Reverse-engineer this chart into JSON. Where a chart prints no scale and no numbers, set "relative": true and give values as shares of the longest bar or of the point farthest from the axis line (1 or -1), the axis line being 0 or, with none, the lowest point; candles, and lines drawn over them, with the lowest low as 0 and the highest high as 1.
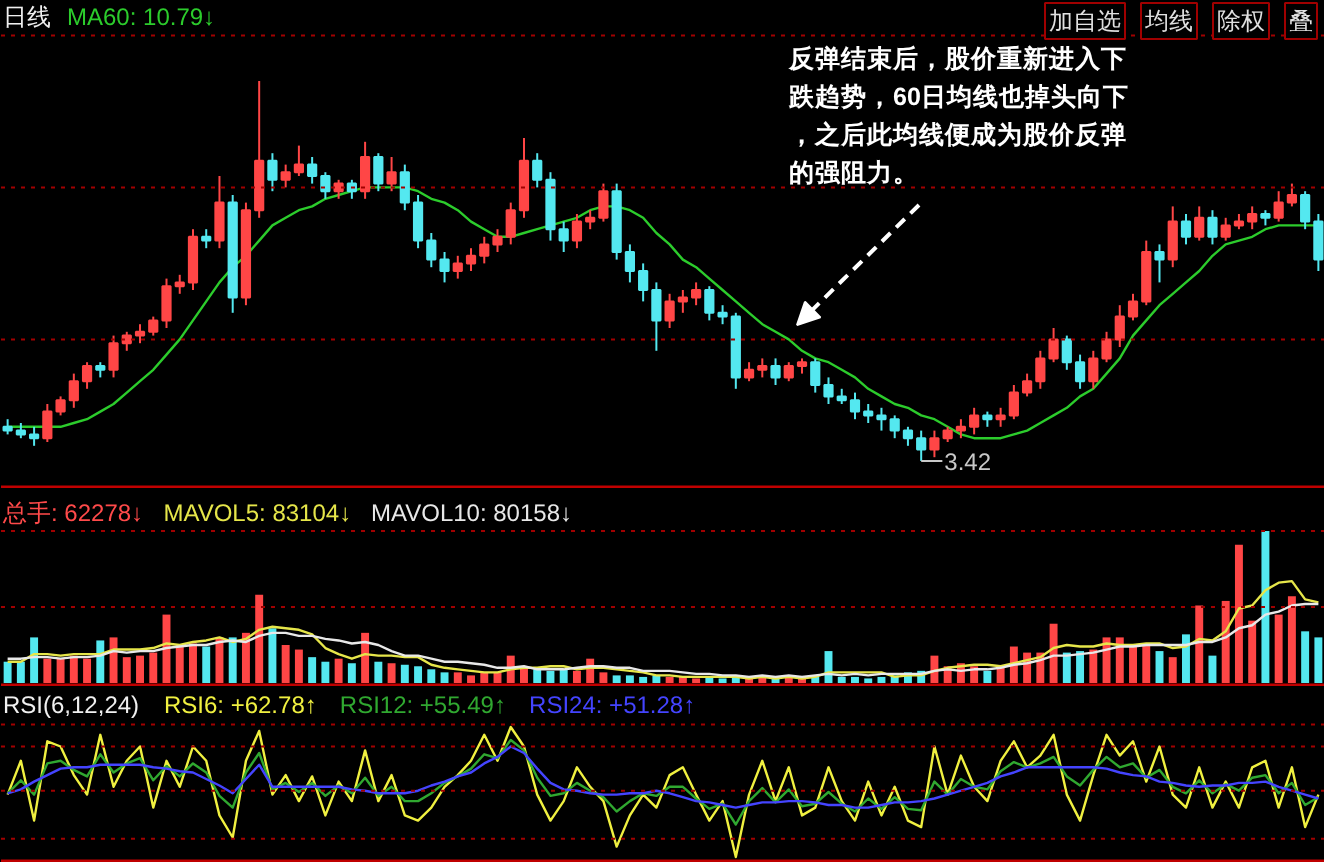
{
  "chart_data": [
    {
      "type": "candlestick",
      "title": "日线",
      "relative": true,
      "legend": "top left",
      "tick_labels": false,
      "categories": [
        null,
        null,
        null,
        null,
        null,
        null,
        null,
        null,
        null,
        null,
        null,
        null,
        null,
        null,
        null,
        null,
        null,
        null,
        null,
        null,
        null,
        null,
        null,
        null,
        null,
        null,
        null,
        null,
        null,
        null,
        null,
        null,
        null,
        null,
        null,
        null,
        null,
        null,
        null,
        null,
        null,
        null,
        null,
        null,
        null,
        null,
        null,
        null,
        null,
        null,
        null,
        null,
        null,
        null,
        null,
        null,
        null,
        null,
        null,
        null,
        null,
        null,
        null,
        null,
        null,
        null,
        null,
        null,
        null,
        null,
        null,
        null,
        null,
        null,
        null,
        null,
        null,
        null,
        null,
        null,
        null,
        null,
        null,
        null,
        null,
        null,
        null,
        null,
        null,
        null,
        null,
        null,
        null,
        null,
        null,
        null,
        null,
        null,
        null,
        null
      ],
      "ohlc": [
        [
          0.09,
          0.11,
          0.07,
          0.08
        ],
        [
          0.08,
          0.1,
          0.06,
          0.07
        ],
        [
          0.07,
          0.09,
          0.04,
          0.06
        ],
        [
          0.06,
          0.15,
          0.05,
          0.13
        ],
        [
          0.13,
          0.17,
          0.12,
          0.16
        ],
        [
          0.16,
          0.23,
          0.14,
          0.21
        ],
        [
          0.21,
          0.26,
          0.19,
          0.25
        ],
        [
          0.25,
          0.26,
          0.22,
          0.24
        ],
        [
          0.24,
          0.33,
          0.22,
          0.31
        ],
        [
          0.31,
          0.34,
          0.29,
          0.33
        ],
        [
          0.33,
          0.36,
          0.31,
          0.34
        ],
        [
          0.34,
          0.38,
          0.33,
          0.37
        ],
        [
          0.37,
          0.48,
          0.35,
          0.46
        ],
        [
          0.46,
          0.49,
          0.44,
          0.47
        ],
        [
          0.47,
          0.61,
          0.45,
          0.59
        ],
        [
          0.59,
          0.61,
          0.56,
          0.58
        ],
        [
          0.58,
          0.75,
          0.56,
          0.68
        ],
        [
          0.68,
          0.7,
          0.39,
          0.43
        ],
        [
          0.43,
          0.68,
          0.41,
          0.66
        ],
        [
          0.66,
          1.0,
          0.64,
          0.79
        ],
        [
          0.79,
          0.81,
          0.71,
          0.74
        ],
        [
          0.74,
          0.78,
          0.72,
          0.76
        ],
        [
          0.76,
          0.83,
          0.75,
          0.78
        ],
        [
          0.78,
          0.8,
          0.73,
          0.75
        ],
        [
          0.75,
          0.76,
          0.69,
          0.71
        ],
        [
          0.71,
          0.74,
          0.69,
          0.73
        ],
        [
          0.73,
          0.74,
          0.69,
          0.71
        ],
        [
          0.71,
          0.84,
          0.69,
          0.8
        ],
        [
          0.8,
          0.81,
          0.71,
          0.73
        ],
        [
          0.73,
          0.8,
          0.71,
          0.76
        ],
        [
          0.76,
          0.78,
          0.66,
          0.68
        ],
        [
          0.68,
          0.7,
          0.56,
          0.58
        ],
        [
          0.58,
          0.6,
          0.51,
          0.53
        ],
        [
          0.53,
          0.55,
          0.47,
          0.5
        ],
        [
          0.5,
          0.54,
          0.48,
          0.52
        ],
        [
          0.52,
          0.56,
          0.5,
          0.54
        ],
        [
          0.54,
          0.59,
          0.52,
          0.57
        ],
        [
          0.57,
          0.61,
          0.55,
          0.59
        ],
        [
          0.59,
          0.68,
          0.57,
          0.66
        ],
        [
          0.66,
          0.85,
          0.64,
          0.79
        ],
        [
          0.79,
          0.81,
          0.72,
          0.74
        ],
        [
          0.74,
          0.76,
          0.58,
          0.61
        ],
        [
          0.61,
          0.63,
          0.55,
          0.58
        ],
        [
          0.58,
          0.65,
          0.56,
          0.63
        ],
        [
          0.63,
          0.66,
          0.61,
          0.64
        ],
        [
          0.64,
          0.73,
          0.63,
          0.71
        ],
        [
          0.71,
          0.73,
          0.53,
          0.55
        ],
        [
          0.55,
          0.57,
          0.47,
          0.5
        ],
        [
          0.5,
          0.52,
          0.42,
          0.45
        ],
        [
          0.45,
          0.47,
          0.29,
          0.37
        ],
        [
          0.37,
          0.44,
          0.35,
          0.42
        ],
        [
          0.42,
          0.45,
          0.39,
          0.43
        ],
        [
          0.43,
          0.47,
          0.41,
          0.45
        ],
        [
          0.45,
          0.46,
          0.37,
          0.39
        ],
        [
          0.39,
          0.41,
          0.36,
          0.38
        ],
        [
          0.38,
          0.39,
          0.19,
          0.22
        ],
        [
          0.22,
          0.26,
          0.21,
          0.24
        ],
        [
          0.24,
          0.27,
          0.22,
          0.25
        ],
        [
          0.25,
          0.27,
          0.2,
          0.22
        ],
        [
          0.22,
          0.26,
          0.21,
          0.25
        ],
        [
          0.25,
          0.27,
          0.23,
          0.26
        ],
        [
          0.26,
          0.27,
          0.18,
          0.2
        ],
        [
          0.2,
          0.22,
          0.15,
          0.17
        ],
        [
          0.17,
          0.19,
          0.15,
          0.16
        ],
        [
          0.16,
          0.18,
          0.11,
          0.13
        ],
        [
          0.13,
          0.15,
          0.1,
          0.12
        ],
        [
          0.12,
          0.14,
          0.08,
          0.11
        ],
        [
          0.11,
          0.12,
          0.06,
          0.08
        ],
        [
          0.08,
          0.09,
          0.04,
          0.06
        ],
        [
          0.06,
          0.08,
          0.0,
          0.03
        ],
        [
          0.03,
          0.08,
          0.01,
          0.06
        ],
        [
          0.06,
          0.09,
          0.05,
          0.08
        ],
        [
          0.08,
          0.11,
          0.06,
          0.09
        ],
        [
          0.09,
          0.14,
          0.07,
          0.12
        ],
        [
          0.12,
          0.13,
          0.09,
          0.11
        ],
        [
          0.11,
          0.14,
          0.09,
          0.12
        ],
        [
          0.12,
          0.2,
          0.11,
          0.18
        ],
        [
          0.18,
          0.23,
          0.17,
          0.21
        ],
        [
          0.21,
          0.29,
          0.19,
          0.27
        ],
        [
          0.27,
          0.35,
          0.26,
          0.32
        ],
        [
          0.32,
          0.33,
          0.24,
          0.26
        ],
        [
          0.26,
          0.28,
          0.19,
          0.21
        ],
        [
          0.21,
          0.29,
          0.19,
          0.27
        ],
        [
          0.27,
          0.34,
          0.26,
          0.32
        ],
        [
          0.32,
          0.41,
          0.3,
          0.38
        ],
        [
          0.38,
          0.44,
          0.37,
          0.42
        ],
        [
          0.42,
          0.58,
          0.41,
          0.55
        ],
        [
          0.55,
          0.57,
          0.47,
          0.53
        ],
        [
          0.53,
          0.67,
          0.51,
          0.63
        ],
        [
          0.63,
          0.65,
          0.57,
          0.59
        ],
        [
          0.59,
          0.67,
          0.58,
          0.64
        ],
        [
          0.64,
          0.66,
          0.57,
          0.59
        ],
        [
          0.59,
          0.64,
          0.58,
          0.62
        ],
        [
          0.62,
          0.65,
          0.61,
          0.63
        ],
        [
          0.63,
          0.67,
          0.61,
          0.65
        ],
        [
          0.65,
          0.66,
          0.62,
          0.64
        ],
        [
          0.64,
          0.71,
          0.63,
          0.68
        ],
        [
          0.68,
          0.73,
          0.67,
          0.7
        ],
        [
          0.7,
          0.71,
          0.61,
          0.63
        ],
        [
          0.63,
          0.65,
          0.5,
          0.53
        ]
      ],
      "colors": [
        "#54e8f0",
        "#54e8f0",
        "#54e8f0",
        "#ff4646",
        "#ff4646",
        "#ff4646",
        "#ff4646",
        "#54e8f0",
        "#ff4646",
        "#ff4646",
        "#ff4646",
        "#ff4646",
        "#ff4646",
        "#ff4646",
        "#ff4646",
        "#54e8f0",
        "#ff4646",
        "#54e8f0",
        "#ff4646",
        "#ff4646",
        "#54e8f0",
        "#ff4646",
        "#ff4646",
        "#54e8f0",
        "#54e8f0",
        "#ff4646",
        "#54e8f0",
        "#ff4646",
        "#54e8f0",
        "#ff4646",
        "#54e8f0",
        "#54e8f0",
        "#54e8f0",
        "#54e8f0",
        "#ff4646",
        "#ff4646",
        "#ff4646",
        "#ff4646",
        "#ff4646",
        "#ff4646",
        "#54e8f0",
        "#54e8f0",
        "#54e8f0",
        "#ff4646",
        "#ff4646",
        "#ff4646",
        "#54e8f0",
        "#54e8f0",
        "#54e8f0",
        "#54e8f0",
        "#ff4646",
        "#ff4646",
        "#ff4646",
        "#54e8f0",
        "#54e8f0",
        "#54e8f0",
        "#ff4646",
        "#ff4646",
        "#54e8f0",
        "#ff4646",
        "#ff4646",
        "#54e8f0",
        "#54e8f0",
        "#54e8f0",
        "#54e8f0",
        "#54e8f0",
        "#54e8f0",
        "#54e8f0",
        "#54e8f0",
        "#54e8f0",
        "#ff4646",
        "#ff4646",
        "#ff4646",
        "#ff4646",
        "#54e8f0",
        "#ff4646",
        "#ff4646",
        "#ff4646",
        "#ff4646",
        "#ff4646",
        "#54e8f0",
        "#54e8f0",
        "#ff4646",
        "#ff4646",
        "#ff4646",
        "#ff4646",
        "#ff4646",
        "#54e8f0",
        "#ff4646",
        "#54e8f0",
        "#ff4646",
        "#54e8f0",
        "#ff4646",
        "#ff4646",
        "#ff4646",
        "#54e8f0",
        "#ff4646",
        "#ff4646",
        "#54e8f0",
        "#54e8f0"
      ],
      "series": [
        {
          "type": "line",
          "name": "MA60: 10.79↓",
          "color": "#2ccc2c",
          "values": [
            0.09,
            0.09,
            0.09,
            0.09,
            0.09,
            0.1,
            0.11,
            0.13,
            0.15,
            0.18,
            0.21,
            0.24,
            0.28,
            0.32,
            0.37,
            0.42,
            0.47,
            0.51,
            0.54,
            0.58,
            0.62,
            0.64,
            0.66,
            0.67,
            0.69,
            0.7,
            0.71,
            0.72,
            0.72,
            0.72,
            0.72,
            0.71,
            0.69,
            0.68,
            0.66,
            0.63,
            0.61,
            0.59,
            0.59,
            0.6,
            0.61,
            0.62,
            0.63,
            0.64,
            0.66,
            0.67,
            0.67,
            0.66,
            0.64,
            0.6,
            0.57,
            0.53,
            0.51,
            0.48,
            0.45,
            0.42,
            0.39,
            0.36,
            0.34,
            0.32,
            0.29,
            0.27,
            0.26,
            0.24,
            0.22,
            0.19,
            0.17,
            0.15,
            0.14,
            0.12,
            0.11,
            0.09,
            0.07,
            0.06,
            0.06,
            0.06,
            0.07,
            0.08,
            0.1,
            0.12,
            0.14,
            0.17,
            0.19,
            0.23,
            0.27,
            0.33,
            0.37,
            0.41,
            0.44,
            0.47,
            0.5,
            0.54,
            0.57,
            0.58,
            0.59,
            0.61,
            0.62,
            0.62,
            0.62,
            0.62
          ]
        }
      ],
      "ref_lines": [
        {
          "axis": "y",
          "value": 1.12,
          "color": "#a00000",
          "line_style": "dotted"
        },
        {
          "axis": "y",
          "value": 0.72,
          "color": "#a00000",
          "line_style": "dotted"
        },
        {
          "axis": "y",
          "value": 0.32,
          "color": "#a00000",
          "line_style": "dotted"
        }
      ],
      "annotations": [
        "反弹结束后，股价重新进入下跌趋势，60日均线也掉头向下，之后此均线便成为股价反弹的强阻力。",
        "3.42",
        "加自选",
        "均线",
        "除权",
        "叠"
      ]
    },
    {
      "type": "bar",
      "relative": true,
      "legend": "top left",
      "tick_labels": false,
      "categories": [
        null,
        null,
        null,
        null,
        null,
        null,
        null,
        null,
        null,
        null,
        null,
        null,
        null,
        null,
        null,
        null,
        null,
        null,
        null,
        null,
        null,
        null,
        null,
        null,
        null,
        null,
        null,
        null,
        null,
        null,
        null,
        null,
        null,
        null,
        null,
        null,
        null,
        null,
        null,
        null,
        null,
        null,
        null,
        null,
        null,
        null,
        null,
        null,
        null,
        null,
        null,
        null,
        null,
        null,
        null,
        null,
        null,
        null,
        null,
        null,
        null,
        null,
        null,
        null,
        null,
        null,
        null,
        null,
        null,
        null,
        null,
        null,
        null,
        null,
        null,
        null,
        null,
        null,
        null,
        null,
        null,
        null,
        null,
        null,
        null,
        null,
        null,
        null,
        null,
        null,
        null,
        null,
        null,
        null,
        null,
        null,
        null,
        null,
        null,
        null
      ],
      "series": [
        {
          "name": "总手: 62278↓",
          "color": "#ff4a4a",
          "colors": [
            "#54e8f0",
            "#54e8f0",
            "#54e8f0",
            "#ff4646",
            "#ff4646",
            "#ff4646",
            "#ff4646",
            "#54e8f0",
            "#ff4646",
            "#ff4646",
            "#ff4646",
            "#ff4646",
            "#ff4646",
            "#ff4646",
            "#ff4646",
            "#54e8f0",
            "#ff4646",
            "#54e8f0",
            "#ff4646",
            "#ff4646",
            "#54e8f0",
            "#ff4646",
            "#ff4646",
            "#54e8f0",
            "#54e8f0",
            "#ff4646",
            "#54e8f0",
            "#ff4646",
            "#54e8f0",
            "#ff4646",
            "#54e8f0",
            "#54e8f0",
            "#54e8f0",
            "#54e8f0",
            "#ff4646",
            "#ff4646",
            "#ff4646",
            "#ff4646",
            "#ff4646",
            "#ff4646",
            "#54e8f0",
            "#54e8f0",
            "#54e8f0",
            "#ff4646",
            "#ff4646",
            "#ff4646",
            "#54e8f0",
            "#54e8f0",
            "#54e8f0",
            "#54e8f0",
            "#ff4646",
            "#ff4646",
            "#ff4646",
            "#54e8f0",
            "#54e8f0",
            "#54e8f0",
            "#ff4646",
            "#ff4646",
            "#54e8f0",
            "#ff4646",
            "#ff4646",
            "#54e8f0",
            "#54e8f0",
            "#54e8f0",
            "#54e8f0",
            "#54e8f0",
            "#54e8f0",
            "#54e8f0",
            "#54e8f0",
            "#54e8f0",
            "#ff4646",
            "#ff4646",
            "#ff4646",
            "#ff4646",
            "#54e8f0",
            "#ff4646",
            "#ff4646",
            "#ff4646",
            "#ff4646",
            "#ff4646",
            "#54e8f0",
            "#54e8f0",
            "#ff4646",
            "#ff4646",
            "#ff4646",
            "#ff4646",
            "#ff4646",
            "#54e8f0",
            "#ff4646",
            "#54e8f0",
            "#ff4646",
            "#54e8f0",
            "#ff4646",
            "#ff4646",
            "#ff4646",
            "#54e8f0",
            "#ff4646",
            "#ff4646",
            "#54e8f0",
            "#54e8f0"
          ],
          "values": [
            0.14,
            0.14,
            0.3,
            0.16,
            0.16,
            0.18,
            0.16,
            0.28,
            0.3,
            0.17,
            0.18,
            0.2,
            0.45,
            0.25,
            0.26,
            0.24,
            0.3,
            0.3,
            0.33,
            0.58,
            0.36,
            0.25,
            0.22,
            0.17,
            0.14,
            0.16,
            0.13,
            0.33,
            0.14,
            0.13,
            0.12,
            0.11,
            0.09,
            0.07,
            0.07,
            0.05,
            0.07,
            0.07,
            0.18,
            0.11,
            0.09,
            0.08,
            0.09,
            0.08,
            0.16,
            0.07,
            0.05,
            0.05,
            0.04,
            0.05,
            0.04,
            0.04,
            0.03,
            0.04,
            0.03,
            0.04,
            0.03,
            0.04,
            0.03,
            0.04,
            0.03,
            0.04,
            0.21,
            0.04,
            0.04,
            0.03,
            0.04,
            0.05,
            0.07,
            0.08,
            0.18,
            0.11,
            0.13,
            0.11,
            0.08,
            0.11,
            0.24,
            0.2,
            0.2,
            0.39,
            0.2,
            0.21,
            0.22,
            0.3,
            0.3,
            0.24,
            0.25,
            0.21,
            0.17,
            0.32,
            0.51,
            0.18,
            0.54,
            0.91,
            0.41,
            1.0,
            0.45,
            0.57,
            0.34,
            0.3
          ]
        },
        {
          "type": "line",
          "name": "MAVOL5: 83104↓",
          "color": "#e6e64a",
          "values": [
            0.14,
            0.14,
            0.19,
            0.19,
            0.18,
            0.19,
            0.19,
            0.19,
            0.22,
            0.22,
            0.22,
            0.23,
            0.26,
            0.25,
            0.27,
            0.28,
            0.3,
            0.27,
            0.29,
            0.35,
            0.37,
            0.36,
            0.35,
            0.32,
            0.23,
            0.19,
            0.16,
            0.19,
            0.18,
            0.18,
            0.17,
            0.17,
            0.12,
            0.1,
            0.09,
            0.08,
            0.07,
            0.07,
            0.09,
            0.1,
            0.1,
            0.11,
            0.11,
            0.09,
            0.1,
            0.1,
            0.09,
            0.08,
            0.07,
            0.05,
            0.05,
            0.04,
            0.04,
            0.04,
            0.04,
            0.04,
            0.03,
            0.04,
            0.03,
            0.04,
            0.03,
            0.04,
            0.07,
            0.07,
            0.07,
            0.07,
            0.07,
            0.04,
            0.05,
            0.05,
            0.08,
            0.1,
            0.11,
            0.12,
            0.12,
            0.11,
            0.13,
            0.15,
            0.17,
            0.23,
            0.25,
            0.24,
            0.24,
            0.26,
            0.25,
            0.25,
            0.26,
            0.26,
            0.23,
            0.24,
            0.29,
            0.28,
            0.34,
            0.49,
            0.51,
            0.61,
            0.66,
            0.67,
            0.55,
            0.53
          ]
        },
        {
          "type": "line",
          "name": "MAVOL10: 80158↓",
          "color": "#e8e8e8",
          "values": [
            0.16,
            0.16,
            0.17,
            0.17,
            0.16,
            0.17,
            0.17,
            0.18,
            0.21,
            0.2,
            0.21,
            0.21,
            0.23,
            0.24,
            0.25,
            0.25,
            0.27,
            0.28,
            0.27,
            0.31,
            0.33,
            0.33,
            0.31,
            0.31,
            0.29,
            0.28,
            0.26,
            0.27,
            0.25,
            0.21,
            0.18,
            0.18,
            0.16,
            0.14,
            0.14,
            0.13,
            0.12,
            0.1,
            0.1,
            0.11,
            0.09,
            0.09,
            0.09,
            0.1,
            0.11,
            0.11,
            0.1,
            0.1,
            0.08,
            0.08,
            0.08,
            0.07,
            0.06,
            0.06,
            0.05,
            0.05,
            0.04,
            0.05,
            0.04,
            0.05,
            0.04,
            0.05,
            0.06,
            0.05,
            0.06,
            0.05,
            0.06,
            0.06,
            0.06,
            0.06,
            0.08,
            0.09,
            0.08,
            0.09,
            0.09,
            0.1,
            0.12,
            0.13,
            0.15,
            0.18,
            0.18,
            0.19,
            0.2,
            0.22,
            0.24,
            0.24,
            0.25,
            0.25,
            0.25,
            0.25,
            0.27,
            0.27,
            0.3,
            0.36,
            0.38,
            0.45,
            0.47,
            0.51,
            0.52,
            0.52
          ]
        }
      ],
      "ref_lines": [
        {
          "axis": "y",
          "value": 1.0,
          "color": "#a00000",
          "line_style": "dotted"
        },
        {
          "axis": "y",
          "value": 0.5,
          "color": "#a00000",
          "line_style": "dotted"
        }
      ]
    },
    {
      "type": "line",
      "title": "RSI(6,12,24)",
      "relative": true,
      "legend": "top left",
      "tick_labels": false,
      "categories": [
        null,
        null,
        null,
        null,
        null,
        null,
        null,
        null,
        null,
        null,
        null,
        null,
        null,
        null,
        null,
        null,
        null,
        null,
        null,
        null,
        null,
        null,
        null,
        null,
        null,
        null,
        null,
        null,
        null,
        null,
        null,
        null,
        null,
        null,
        null,
        null,
        null,
        null,
        null,
        null,
        null,
        null,
        null,
        null,
        null,
        null,
        null,
        null,
        null,
        null,
        null,
        null,
        null,
        null,
        null,
        null,
        null,
        null,
        null,
        null,
        null,
        null,
        null,
        null,
        null,
        null,
        null,
        null,
        null,
        null,
        null,
        null,
        null,
        null,
        null,
        null,
        null,
        null,
        null,
        null,
        null,
        null,
        null,
        null,
        null,
        null,
        null,
        null,
        null,
        null,
        null,
        null,
        null,
        null,
        null,
        null,
        null,
        null,
        null,
        null
      ],
      "series": [
        {
          "name": "RSI6: +62.78↑",
          "color": "#f0f040",
          "values": [
            0.48,
            0.74,
            0.28,
            0.89,
            0.85,
            0.63,
            0.48,
            0.94,
            0.54,
            0.74,
            0.85,
            0.38,
            0.74,
            0.54,
            0.85,
            0.74,
            0.32,
            0.15,
            0.74,
            0.97,
            0.48,
            0.63,
            0.43,
            0.62,
            0.32,
            0.58,
            0.43,
            0.82,
            0.43,
            0.63,
            0.32,
            0.28,
            0.38,
            0.54,
            0.63,
            0.74,
            0.94,
            0.74,
            1.0,
            0.85,
            0.48,
            0.28,
            0.43,
            0.69,
            0.54,
            0.43,
            0.08,
            0.32,
            0.48,
            0.38,
            0.63,
            0.69,
            0.48,
            0.28,
            0.43,
            0.0,
            0.48,
            0.74,
            0.43,
            0.69,
            0.32,
            0.38,
            0.69,
            0.43,
            0.28,
            0.58,
            0.32,
            0.54,
            0.28,
            0.23,
            0.85,
            0.48,
            0.78,
            0.54,
            0.43,
            0.74,
            0.89,
            0.69,
            0.78,
            0.94,
            0.48,
            0.28,
            0.63,
            0.94,
            0.78,
            0.89,
            0.58,
            0.85,
            0.48,
            0.38,
            0.69,
            0.38,
            0.58,
            0.38,
            0.69,
            0.74,
            0.38,
            0.69,
            0.23,
            0.48
          ]
        },
        {
          "name": "RSI12: +55.49↑",
          "color": "#30a830",
          "values": [
            0.49,
            0.59,
            0.48,
            0.72,
            0.74,
            0.67,
            0.62,
            0.79,
            0.65,
            0.72,
            0.76,
            0.59,
            0.7,
            0.62,
            0.72,
            0.65,
            0.47,
            0.38,
            0.65,
            0.8,
            0.52,
            0.57,
            0.5,
            0.57,
            0.47,
            0.55,
            0.49,
            0.61,
            0.47,
            0.54,
            0.43,
            0.43,
            0.49,
            0.57,
            0.62,
            0.68,
            0.79,
            0.76,
            0.9,
            0.82,
            0.61,
            0.47,
            0.49,
            0.57,
            0.51,
            0.46,
            0.35,
            0.43,
            0.49,
            0.47,
            0.54,
            0.54,
            0.45,
            0.37,
            0.41,
            0.25,
            0.43,
            0.53,
            0.42,
            0.52,
            0.39,
            0.41,
            0.5,
            0.41,
            0.35,
            0.45,
            0.37,
            0.46,
            0.37,
            0.36,
            0.58,
            0.48,
            0.6,
            0.54,
            0.52,
            0.66,
            0.73,
            0.69,
            0.72,
            0.77,
            0.62,
            0.55,
            0.67,
            0.77,
            0.69,
            0.72,
            0.61,
            0.67,
            0.54,
            0.49,
            0.59,
            0.49,
            0.56,
            0.51,
            0.61,
            0.63,
            0.49,
            0.57,
            0.4,
            0.46
          ]
        },
        {
          "name": "RSI24: +51.28↑",
          "color": "#4444ff",
          "values": [
            0.49,
            0.52,
            0.58,
            0.63,
            0.68,
            0.69,
            0.69,
            0.71,
            0.71,
            0.71,
            0.71,
            0.69,
            0.68,
            0.66,
            0.65,
            0.6,
            0.55,
            0.49,
            0.6,
            0.71,
            0.54,
            0.54,
            0.54,
            0.54,
            0.54,
            0.54,
            0.52,
            0.51,
            0.49,
            0.49,
            0.49,
            0.51,
            0.55,
            0.58,
            0.62,
            0.65,
            0.72,
            0.77,
            0.85,
            0.8,
            0.68,
            0.57,
            0.52,
            0.51,
            0.49,
            0.48,
            0.48,
            0.49,
            0.49,
            0.51,
            0.49,
            0.46,
            0.43,
            0.42,
            0.4,
            0.38,
            0.4,
            0.42,
            0.42,
            0.43,
            0.43,
            0.42,
            0.4,
            0.4,
            0.38,
            0.38,
            0.4,
            0.42,
            0.42,
            0.43,
            0.45,
            0.48,
            0.51,
            0.54,
            0.57,
            0.62,
            0.65,
            0.69,
            0.69,
            0.69,
            0.69,
            0.69,
            0.69,
            0.68,
            0.65,
            0.63,
            0.62,
            0.58,
            0.57,
            0.55,
            0.54,
            0.55,
            0.55,
            0.57,
            0.57,
            0.58,
            0.54,
            0.51,
            0.48,
            0.45
          ]
        }
      ],
      "ref_lines": [
        {
          "axis": "y",
          "value": 1.02,
          "color": "#a00000",
          "line_style": "dotted"
        },
        {
          "axis": "y",
          "value": 0.85,
          "color": "#a00000",
          "line_style": "dotted"
        },
        {
          "axis": "y",
          "value": 0.51,
          "color": "#a00000",
          "line_style": "dotted"
        },
        {
          "axis": "y",
          "value": 0.14,
          "color": "#a00000",
          "line_style": "dotted"
        }
      ]
    }
  ]
}
